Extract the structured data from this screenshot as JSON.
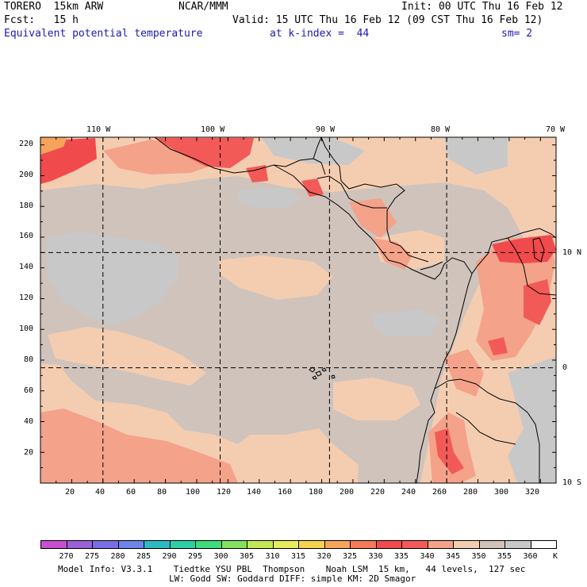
{
  "header": {
    "model": "TORERO  15km ARW",
    "org": "NCAR/MMM",
    "init": "Init: 00 UTC Thu 16 Feb 12",
    "fcst": "Fcst:   15 h",
    "valid": "Valid: 15 UTC Thu 16 Feb 12 (09 CST Thu 16 Feb 12)",
    "field": "Equivalent potential temperature",
    "level": "at k-index =  44",
    "smooth": "sm= 2"
  },
  "map": {
    "top_lon_labels": [
      "110 W",
      "100 W",
      "90 W",
      "80 W",
      "70 W"
    ],
    "right_lat_labels": [
      "10 N",
      "0",
      "10 S"
    ],
    "left_axis": [
      "220",
      "200",
      "180",
      "160",
      "140",
      "120",
      "100",
      "80",
      "60",
      "40",
      "20"
    ],
    "bottom_axis": [
      "20",
      "40",
      "60",
      "80",
      "100",
      "120",
      "140",
      "160",
      "180",
      "200",
      "220",
      "240",
      "260",
      "280",
      "300",
      "320"
    ],
    "grid_i": [
      40,
      115,
      185,
      260
    ],
    "grid_j": [
      75,
      150
    ],
    "grid_extent_i": [
      0,
      330
    ],
    "grid_extent_j": [
      0,
      225
    ]
  },
  "colorbar": {
    "labels": [
      "270",
      "275",
      "280",
      "285",
      "290",
      "295",
      "300",
      "305",
      "310",
      "315",
      "320",
      "325",
      "330",
      "335",
      "340",
      "345",
      "350",
      "355",
      "360"
    ],
    "unit": "K",
    "colors": [
      "#c84fd0",
      "#9a62d6",
      "#7a6ee6",
      "#6e86e8",
      "#2fb9c4",
      "#2ecfa4",
      "#3edb7a",
      "#86e060",
      "#c2e858",
      "#e6ec5c",
      "#f6d24e",
      "#f6a45c",
      "#f47a5a",
      "#f14a4c",
      "#f25a58",
      "#f4a28a",
      "#f4cdb1",
      "#cfc3bc",
      "#c8c8c8",
      "#ffffff"
    ]
  },
  "footer": {
    "line1": "Model Info: V3.3.1    Tiedtke YSU PBL  Thompson    Noah LSM  15 km,   44 levels,  127 sec",
    "line2": "LW: Godd SW: Goddard DIFF: simple KM: 2D Smagor"
  }
}
